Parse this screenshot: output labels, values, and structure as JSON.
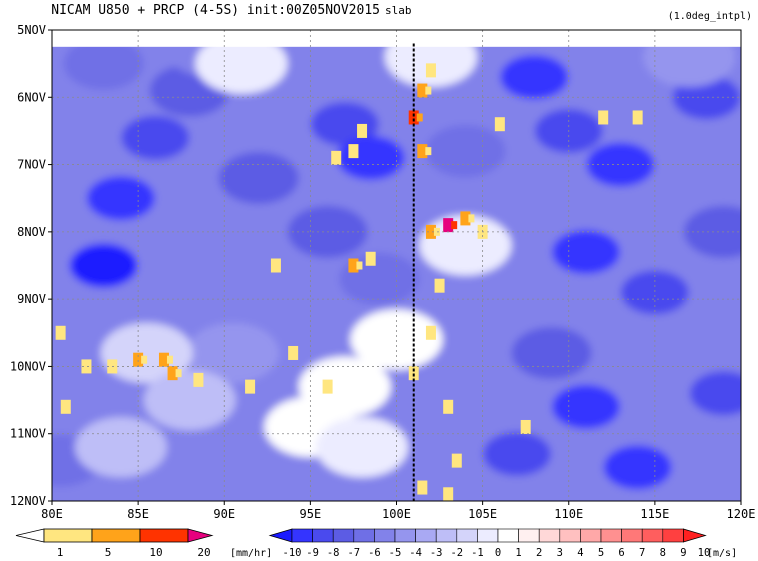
{
  "chart_data": {
    "type": "heatmap",
    "title": "NICAM   U850 + PRCP (4-5S) init:00Z05NOV2015",
    "title_suffix": "slab",
    "subtitle": "(1.0deg_intpl)",
    "x_ticks": [
      "80E",
      "85E",
      "90E",
      "95E",
      "100E",
      "105E",
      "110E",
      "115E",
      "120E"
    ],
    "x_values": [
      80,
      85,
      90,
      95,
      100,
      105,
      110,
      115,
      120
    ],
    "y_ticks": [
      "5NOV",
      "6NOV",
      "7NOV",
      "8NOV",
      "9NOV",
      "10NOV",
      "11NOV",
      "12NOV"
    ],
    "y_values": [
      5,
      6,
      7,
      8,
      9,
      10,
      11,
      12
    ],
    "xlim": [
      80,
      120
    ],
    "ylim": [
      5,
      12
    ],
    "data_start_day": 5.25,
    "marker_line_lon": 101,
    "wind_levels": [
      -10,
      -9,
      -8,
      -7,
      -6,
      -5,
      -4,
      -3,
      -2,
      -1,
      0,
      1,
      2,
      3,
      4,
      5,
      6,
      7,
      8,
      9,
      10
    ],
    "wind_colors": [
      "#1a1aff",
      "#3434ff",
      "#4a4aee",
      "#5c5ce4",
      "#6f6fe6",
      "#8282ea",
      "#9595ee",
      "#a9a9f3",
      "#bebef7",
      "#d4d4fa",
      "#ececff",
      "#ffffff",
      "#fff0f0",
      "#ffd8d8",
      "#ffc0c0",
      "#ffa8a8",
      "#ff9090",
      "#ff7878",
      "#ff5e5e",
      "#ff4040",
      "#ff2020"
    ],
    "wind_unit": "[m/s]",
    "precip_levels": [
      1,
      5,
      10,
      20
    ],
    "precip_colors": [
      "#ffffff",
      "#ffe680",
      "#ffa31a",
      "#ff3300",
      "#e6007e"
    ],
    "precip_unit": "[mm/hr]",
    "wind_features": [
      {
        "lon": 84,
        "day": 7.5,
        "u": -9
      },
      {
        "lon": 83,
        "day": 8.5,
        "u": -10
      },
      {
        "lon": 86,
        "day": 6.6,
        "u": -8
      },
      {
        "lon": 88,
        "day": 5.9,
        "u": -7
      },
      {
        "lon": 83,
        "day": 5.5,
        "u": -6
      },
      {
        "lon": 92,
        "day": 7.2,
        "u": -7
      },
      {
        "lon": 97,
        "day": 6.4,
        "u": -8
      },
      {
        "lon": 98.5,
        "day": 6.9,
        "u": -9
      },
      {
        "lon": 96,
        "day": 8.0,
        "u": -7
      },
      {
        "lon": 99,
        "day": 8.7,
        "u": -6
      },
      {
        "lon": 108,
        "day": 5.7,
        "u": -9
      },
      {
        "lon": 110,
        "day": 6.5,
        "u": -8
      },
      {
        "lon": 113,
        "day": 7.0,
        "u": -9
      },
      {
        "lon": 118,
        "day": 6.0,
        "u": -8
      },
      {
        "lon": 111,
        "day": 8.3,
        "u": -9
      },
      {
        "lon": 115,
        "day": 8.9,
        "u": -8
      },
      {
        "lon": 119,
        "day": 8.0,
        "u": -7
      },
      {
        "lon": 109,
        "day": 9.8,
        "u": -7
      },
      {
        "lon": 111,
        "day": 10.6,
        "u": -9
      },
      {
        "lon": 107,
        "day": 11.3,
        "u": -8
      },
      {
        "lon": 114,
        "day": 11.5,
        "u": -9
      },
      {
        "lon": 119,
        "day": 10.4,
        "u": -8
      },
      {
        "lon": 104,
        "day": 6.8,
        "u": -6
      },
      {
        "lon": 80.5,
        "day": 11.4,
        "u": -6
      },
      {
        "lon": 90.5,
        "day": 9.8,
        "u": -4
      },
      {
        "lon": 89,
        "day": 5.3,
        "u": -5
      },
      {
        "lon": 97,
        "day": 10.3,
        "u": 1
      },
      {
        "lon": 100,
        "day": 9.6,
        "u": 1
      },
      {
        "lon": 95,
        "day": 10.9,
        "u": 1
      },
      {
        "lon": 98,
        "day": 11.2,
        "u": 0
      },
      {
        "lon": 85.5,
        "day": 9.8,
        "u": -1
      },
      {
        "lon": 88,
        "day": 10.5,
        "u": -2
      },
      {
        "lon": 91,
        "day": 5.5,
        "u": 0
      },
      {
        "lon": 102,
        "day": 5.4,
        "u": 0
      },
      {
        "lon": 84,
        "day": 11.2,
        "u": -2
      },
      {
        "lon": 104,
        "day": 8.2,
        "u": 0
      },
      {
        "lon": 117,
        "day": 5.4,
        "u": -4
      }
    ],
    "precip_cells": [
      {
        "lon": 101,
        "day": 6.3,
        "mm": 12
      },
      {
        "lon": 101.5,
        "day": 5.9,
        "mm": 6
      },
      {
        "lon": 102,
        "day": 5.6,
        "mm": 3
      },
      {
        "lon": 101.5,
        "day": 6.8,
        "mm": 6
      },
      {
        "lon": 102.5,
        "day": 8.8,
        "mm": 3
      },
      {
        "lon": 103,
        "day": 7.9,
        "mm": 22
      },
      {
        "lon": 102,
        "day": 8.0,
        "mm": 8
      },
      {
        "lon": 104,
        "day": 7.8,
        "mm": 6
      },
      {
        "lon": 105,
        "day": 8.0,
        "mm": 3
      },
      {
        "lon": 98,
        "day": 6.5,
        "mm": 3
      },
      {
        "lon": 97.5,
        "day": 6.8,
        "mm": 3
      },
      {
        "lon": 96.5,
        "day": 6.9,
        "mm": 3
      },
      {
        "lon": 98.5,
        "day": 8.4,
        "mm": 3
      },
      {
        "lon": 97.5,
        "day": 8.5,
        "mm": 6
      },
      {
        "lon": 93,
        "day": 8.5,
        "mm": 3
      },
      {
        "lon": 106,
        "day": 6.4,
        "mm": 2
      },
      {
        "lon": 112,
        "day": 6.3,
        "mm": 3
      },
      {
        "lon": 114,
        "day": 6.3,
        "mm": 3
      },
      {
        "lon": 80.5,
        "day": 9.5,
        "mm": 3
      },
      {
        "lon": 82,
        "day": 10.0,
        "mm": 2
      },
      {
        "lon": 83.5,
        "day": 10.0,
        "mm": 2
      },
      {
        "lon": 85,
        "day": 9.9,
        "mm": 9
      },
      {
        "lon": 86.5,
        "day": 9.9,
        "mm": 6
      },
      {
        "lon": 87,
        "day": 10.1,
        "mm": 9
      },
      {
        "lon": 88.5,
        "day": 10.2,
        "mm": 3
      },
      {
        "lon": 91.5,
        "day": 10.3,
        "mm": 2
      },
      {
        "lon": 94,
        "day": 9.8,
        "mm": 3
      },
      {
        "lon": 96,
        "day": 10.3,
        "mm": 2
      },
      {
        "lon": 101,
        "day": 10.1,
        "mm": 2
      },
      {
        "lon": 102,
        "day": 9.5,
        "mm": 3
      },
      {
        "lon": 103,
        "day": 10.6,
        "mm": 3
      },
      {
        "lon": 103.5,
        "day": 11.4,
        "mm": 3
      },
      {
        "lon": 101.5,
        "day": 11.8,
        "mm": 2
      },
      {
        "lon": 103,
        "day": 11.9,
        "mm": 3
      },
      {
        "lon": 80.8,
        "day": 10.6,
        "mm": 3
      },
      {
        "lon": 107.5,
        "day": 10.9,
        "mm": 2
      }
    ]
  }
}
